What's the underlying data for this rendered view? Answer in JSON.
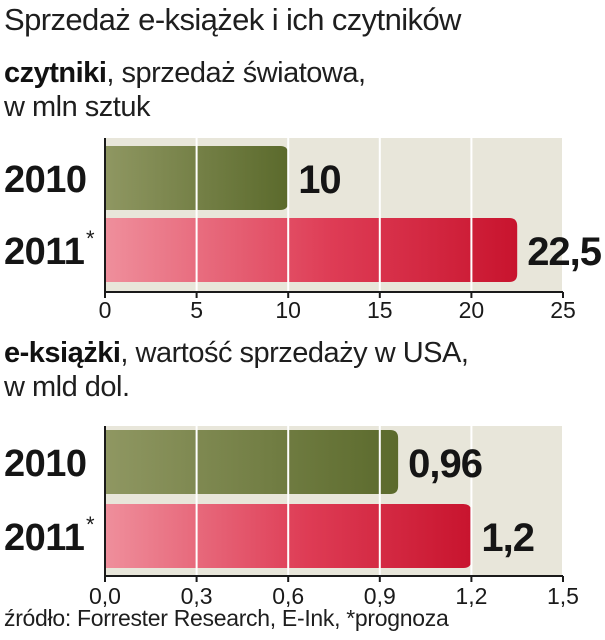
{
  "title": "Sprzedaż e-książek i ich czytników",
  "source": "źródło: Forrester Research, E-Ink, *prognoza",
  "colors": {
    "olive": "#5b6a2c",
    "red": "#c8142e",
    "panel": "#e8e6da",
    "grid": "#ffffff"
  },
  "chart_data": [
    {
      "type": "bar",
      "orientation": "horizontal",
      "subtitle_bold": "czytniki",
      "subtitle_line1": ", sprzedaż światowa,",
      "subtitle_line2": "w mln sztuk",
      "categories": [
        "2010",
        "2011"
      ],
      "category_notes": [
        "",
        "*"
      ],
      "values": [
        10,
        22.5
      ],
      "value_labels": [
        "10",
        "22,5"
      ],
      "xlim": [
        0,
        25
      ],
      "ticks": [
        0,
        5,
        10,
        15,
        20,
        25
      ],
      "tick_labels": [
        "0",
        "5",
        "10",
        "15",
        "20",
        "25"
      ],
      "grid": true
    },
    {
      "type": "bar",
      "orientation": "horizontal",
      "subtitle_bold": "e-książki",
      "subtitle_line1": ", wartość sprzedaży w USA,",
      "subtitle_line2": "w mld dol.",
      "categories": [
        "2010",
        "2011"
      ],
      "category_notes": [
        "",
        "*"
      ],
      "values": [
        0.96,
        1.2
      ],
      "value_labels": [
        "0,96",
        "1,2"
      ],
      "xlim": [
        0,
        1.5
      ],
      "ticks": [
        0,
        0.3,
        0.6,
        0.9,
        1.2,
        1.5
      ],
      "tick_labels": [
        "0,0",
        "0,3",
        "0,6",
        "0,9",
        "1,2",
        "1,5"
      ],
      "grid": true
    }
  ]
}
